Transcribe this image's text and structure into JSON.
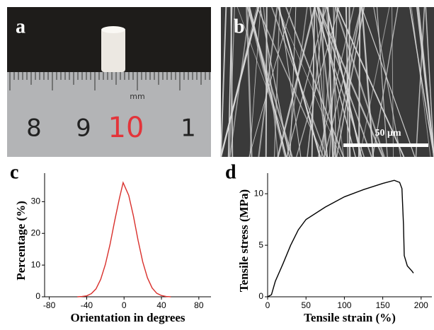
{
  "panels": [
    "a",
    "b",
    "c",
    "d"
  ],
  "ruler": {
    "labels": [
      "8",
      "9",
      "10",
      "1"
    ],
    "unit": "mm"
  },
  "scale_bar": "50 μm",
  "chart_data": [
    {
      "type": "line",
      "x_label": "Orientation in degrees",
      "y_label": "Percentage (%)",
      "x": [
        -50,
        -45,
        -40,
        -35,
        -30,
        -25,
        -20,
        -15,
        -10,
        -5,
        -1,
        5,
        10,
        15,
        20,
        25,
        30,
        35,
        40,
        45,
        50
      ],
      "series": [
        {
          "color": "#d9302c",
          "values": [
            0,
            0.1,
            0.3,
            1.0,
            2.5,
            5.5,
            10.2,
            16.5,
            24,
            31,
            36,
            32,
            25.5,
            17.8,
            11,
            6,
            2.8,
            1.1,
            0.4,
            0.1,
            0
          ]
        }
      ],
      "xlim": [
        -85,
        93
      ],
      "ylim": [
        0,
        39
      ],
      "xticks": [
        -80,
        -40,
        0,
        40,
        80
      ],
      "yticks": [
        0,
        10,
        20,
        30
      ]
    },
    {
      "type": "line",
      "x_label": "Tensile strain (%)",
      "y_label": "Tensile stress (MPa)",
      "x": [
        0,
        5,
        10,
        20,
        30,
        40,
        50,
        75,
        100,
        125,
        150,
        165,
        172,
        175,
        177,
        178,
        182,
        188,
        190
      ],
      "series": [
        {
          "color": "#000000",
          "values": [
            0,
            0.2,
            1.5,
            3.2,
            5,
            6.5,
            7.5,
            8.7,
            9.7,
            10.4,
            11,
            11.3,
            11.1,
            10.5,
            7,
            4,
            3,
            2.5,
            2.3
          ]
        }
      ],
      "xlim": [
        0,
        214
      ],
      "ylim": [
        0,
        12
      ],
      "xticks": [
        0,
        50,
        100,
        150,
        200
      ],
      "yticks": [
        0,
        5,
        10
      ]
    }
  ]
}
